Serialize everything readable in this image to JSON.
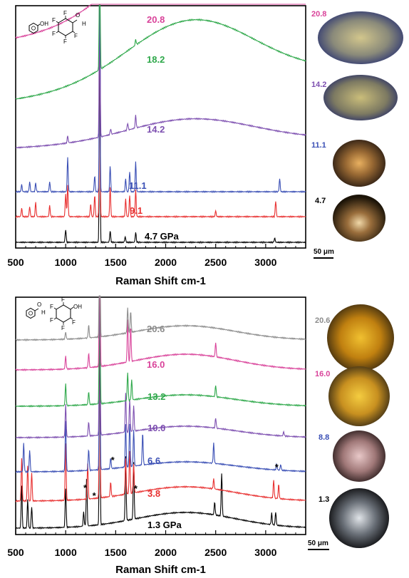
{
  "chart_data": [
    {
      "type": "line",
      "panel": "top",
      "xlabel": "Raman Shift cm-1",
      "xticks": [
        500,
        1000,
        1500,
        2000,
        2500,
        3000
      ],
      "xlim": [
        500,
        3400
      ],
      "molecule_labels": [
        "OH",
        "F",
        "F",
        "F",
        "F",
        "F",
        "O",
        "H"
      ],
      "series": [
        {
          "label": "4.7 GPa",
          "color": "#000000",
          "shape": "flat",
          "peaks": [
            [
              1000,
              18
            ],
            [
              1340,
              300
            ],
            [
              1445,
              16
            ],
            [
              1595,
              8
            ],
            [
              1700,
              14
            ],
            [
              3090,
              6
            ]
          ]
        },
        {
          "label": "9.1",
          "color": "#e83030",
          "shape": "flat",
          "peaks": [
            [
              560,
              12
            ],
            [
              640,
              14
            ],
            [
              700,
              20
            ],
            [
              840,
              16
            ],
            [
              1000,
              32
            ],
            [
              1020,
              44
            ],
            [
              1250,
              18
            ],
            [
              1290,
              30
            ],
            [
              1340,
              300
            ],
            [
              1445,
              42
            ],
            [
              1600,
              25
            ],
            [
              1640,
              30
            ],
            [
              1700,
              38
            ],
            [
              2500,
              8
            ],
            [
              3100,
              22
            ]
          ]
        },
        {
          "label": "11.1",
          "color": "#3a4fb5",
          "shape": "flat",
          "peaks": [
            [
              560,
              10
            ],
            [
              640,
              14
            ],
            [
              700,
              12
            ],
            [
              840,
              14
            ],
            [
              1020,
              48
            ],
            [
              1290,
              22
            ],
            [
              1340,
              300
            ],
            [
              1445,
              36
            ],
            [
              1600,
              18
            ],
            [
              1640,
              28
            ],
            [
              1700,
              42
            ],
            [
              3140,
              18
            ]
          ]
        },
        {
          "label": "14.2",
          "color": "#7d4fb0",
          "shape": "hump",
          "peaks": [
            [
              1020,
              10
            ],
            [
              1340,
              300
            ],
            [
              1450,
              8
            ],
            [
              1620,
              10
            ],
            [
              1700,
              18
            ]
          ]
        },
        {
          "label": "18.2",
          "color": "#2ea84a",
          "shape": "hump",
          "peaks": [
            [
              1340,
              300
            ],
            [
              1700,
              8
            ]
          ]
        },
        {
          "label": "20.8",
          "color": "#d9439a",
          "shape": "hump",
          "peaks": [
            [
              1340,
              300
            ]
          ]
        }
      ],
      "micrograph_labels": [
        "20.8",
        "14.2",
        "11.1",
        "4.7"
      ],
      "scale_bar": "50 μm"
    },
    {
      "type": "line",
      "panel": "bottom",
      "xlabel": "Raman Shift cm-1",
      "xticks": [
        500,
        1000,
        1500,
        2000,
        2500,
        3000
      ],
      "xlim": [
        500,
        3400
      ],
      "molecule_labels": [
        "O",
        "H",
        "F",
        "F",
        "F",
        "F",
        "F",
        "OH"
      ],
      "series": [
        {
          "label": "1.3 GPa",
          "color": "#000000",
          "shape": "flat",
          "peaks": [
            [
              560,
              60
            ],
            [
              620,
              40
            ],
            [
              660,
              30
            ],
            [
              1000,
              55
            ],
            [
              1180,
              20
            ],
            [
              1210,
              70
            ],
            [
              1340,
              300
            ],
            [
              1600,
              90
            ],
            [
              1680,
              80
            ],
            [
              2490,
              18
            ],
            [
              2560,
              60
            ],
            [
              3060,
              16
            ],
            [
              3100,
              18
            ]
          ]
        },
        {
          "label": "3.8",
          "color": "#e83030",
          "shape": "flat",
          "peaks": [
            [
              560,
              60
            ],
            [
              620,
              50
            ],
            [
              660,
              40
            ],
            [
              1000,
              80
            ],
            [
              1220,
              50
            ],
            [
              1340,
              300
            ],
            [
              1450,
              20
            ],
            [
              1600,
              50
            ],
            [
              1640,
              60
            ],
            [
              1680,
              40
            ],
            [
              2480,
              14
            ],
            [
              3080,
              25
            ],
            [
              3130,
              20
            ]
          ]
        },
        {
          "label": "6.6",
          "color": "#3a4fb5",
          "shape": "flat",
          "peaks": [
            [
              580,
              40
            ],
            [
              640,
              30
            ],
            [
              1000,
              70
            ],
            [
              1230,
              30
            ],
            [
              1340,
              300
            ],
            [
              1450,
              15
            ],
            [
              1600,
              60
            ],
            [
              1640,
              60
            ],
            [
              1680,
              50
            ],
            [
              1770,
              45
            ],
            [
              2480,
              28
            ],
            [
              3110,
              8
            ],
            [
              3150,
              8
            ]
          ]
        },
        {
          "label": "10.0",
          "color": "#7d4fb0",
          "shape": "flat",
          "peaks": [
            [
              1000,
              45
            ],
            [
              1230,
              20
            ],
            [
              1340,
              300
            ],
            [
              1600,
              55
            ],
            [
              1640,
              45
            ],
            [
              1680,
              35
            ],
            [
              2500,
              14
            ],
            [
              3180,
              6
            ]
          ]
        },
        {
          "label": "13.2",
          "color": "#2ea84a",
          "shape": "flat",
          "peaks": [
            [
              1000,
              30
            ],
            [
              1230,
              18
            ],
            [
              1340,
              300
            ],
            [
              1620,
              40
            ],
            [
              1660,
              28
            ],
            [
              2500,
              16
            ]
          ]
        },
        {
          "label": "16.0",
          "color": "#d9439a",
          "shape": "flat",
          "peaks": [
            [
              1000,
              18
            ],
            [
              1230,
              20
            ],
            [
              1340,
              300
            ],
            [
              1620,
              60
            ],
            [
              1650,
              50
            ],
            [
              2500,
              20
            ]
          ]
        },
        {
          "label": "20.6",
          "color": "#8c8c8c",
          "shape": "flat",
          "peaks": [
            [
              1000,
              10
            ],
            [
              1230,
              18
            ],
            [
              1340,
              300
            ],
            [
              1620,
              35
            ],
            [
              1650,
              30
            ]
          ]
        }
      ],
      "annotations": [
        "*",
        "*",
        "*",
        "*",
        "*"
      ],
      "micrograph_labels": [
        "20.6",
        "16.0",
        "8.8",
        "1.3"
      ],
      "scale_bar": "50 μm"
    }
  ]
}
